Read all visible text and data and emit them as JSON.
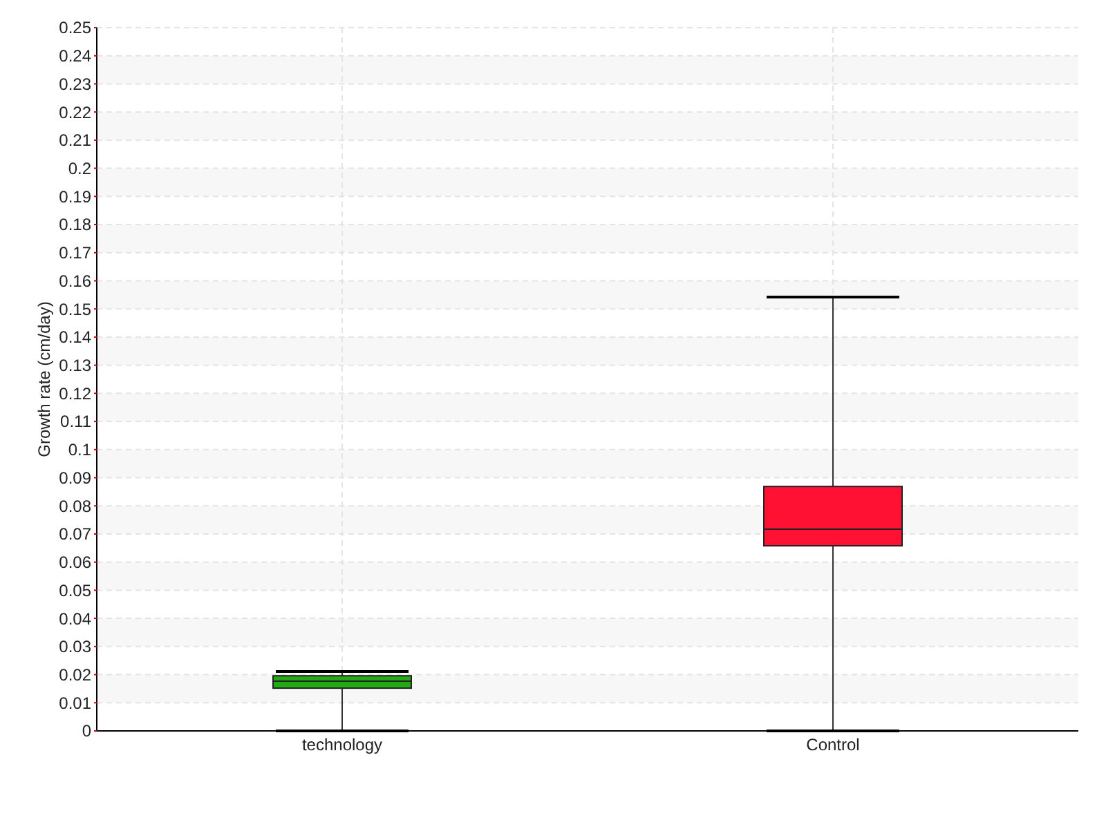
{
  "chart_data": {
    "type": "box",
    "ylabel": "Growth rate (cm/day)",
    "categories": [
      "technology",
      "Control"
    ],
    "boxes": [
      {
        "low": 0,
        "q1": 0.0152,
        "median": 0.0177,
        "q3": 0.0196,
        "high": 0.0211
      },
      {
        "low": 0,
        "q1": 0.0658,
        "median": 0.0717,
        "q3": 0.0869,
        "high": 0.1542
      }
    ],
    "colors": [
      "#22aa11",
      "#ff1133"
    ],
    "ylim": [
      0,
      0.25
    ],
    "yticks": [
      0,
      0.01,
      0.02,
      0.03,
      0.04,
      0.05,
      0.06,
      0.07,
      0.08,
      0.09,
      0.1,
      0.11,
      0.12,
      0.13,
      0.14,
      0.15,
      0.16,
      0.17,
      0.18,
      0.19,
      0.2,
      0.21,
      0.22,
      0.23,
      0.24,
      0.25
    ],
    "grid": true
  }
}
